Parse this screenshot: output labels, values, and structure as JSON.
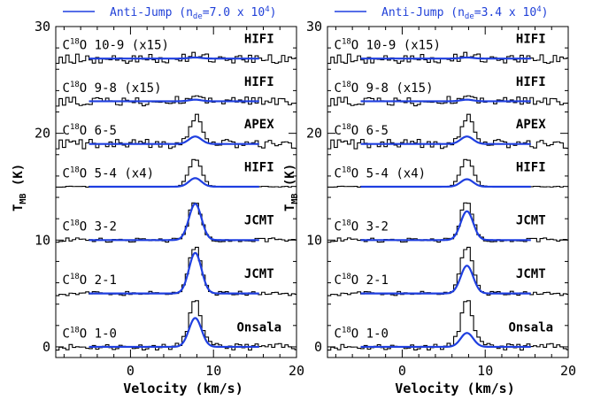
{
  "figure": {
    "ylabel": "T",
    "ylabel_sub": "MB",
    "ylabel_unit": " (K)",
    "xlabel": "Velocity (km/s)"
  },
  "colors": {
    "observed": "#000000",
    "model": "#1f3fe0",
    "legend_text": "#2040d8"
  },
  "chart_data": [
    {
      "type": "line",
      "legend": {
        "text": "Anti-Jump (n",
        "sub": "de",
        "eq": "=7.0 x 10",
        "sup": "4",
        "close": ")",
        "placement": "top"
      },
      "xlim": [
        -9,
        20
      ],
      "ylim": [
        -1,
        30
      ],
      "xticks": [
        0,
        10,
        20
      ],
      "yticks": [
        0,
        10,
        20,
        30
      ],
      "xlabel": "Velocity (km/s)",
      "ylabel": "T_MB (K)",
      "spectra": [
        {
          "line": "1-0",
          "mult": "",
          "telescope": "Onsala",
          "baseline": 0,
          "obs_peak": 4.2,
          "model_peak": 2.7,
          "noise": 0.3,
          "telescope_x": 15.5
        },
        {
          "line": "2-1",
          "mult": "",
          "telescope": "JCMT",
          "baseline": 5,
          "obs_peak": 4.4,
          "model_peak": 3.8,
          "noise": 0.2,
          "telescope_x": 15.5
        },
        {
          "line": "3-2",
          "mult": "",
          "telescope": "JCMT",
          "baseline": 10,
          "obs_peak": 3.6,
          "model_peak": 3.4,
          "noise": 0.2,
          "telescope_x": 15.5
        },
        {
          "line": "5-4",
          "mult": " (x4)",
          "telescope": "HIFI",
          "baseline": 15,
          "obs_peak": 2.6,
          "model_peak": 0.8,
          "noise": 0.04,
          "telescope_x": 15.5
        },
        {
          "line": "6-5",
          "mult": "",
          "telescope": "APEX",
          "baseline": 19,
          "obs_peak": 2.5,
          "model_peak": 0.7,
          "noise": 0.45,
          "telescope_x": 15.5
        },
        {
          "line": "9-8",
          "mult": " (x15)",
          "telescope": "HIFI",
          "baseline": 23,
          "obs_peak": 0.4,
          "model_peak": 0.15,
          "noise": 0.45,
          "telescope_x": 15.5
        },
        {
          "line": "10-9",
          "mult": " (x15)",
          "telescope": "HIFI",
          "baseline": 27,
          "obs_peak": 0.2,
          "model_peak": 0.1,
          "noise": 0.45,
          "telescope_x": 15.5
        }
      ]
    },
    {
      "type": "line",
      "legend": {
        "text": "Anti-Jump (n",
        "sub": "de",
        "eq": "=3.4 x 10",
        "sup": "4",
        "close": ")",
        "placement": "top"
      },
      "xlim": [
        -9,
        20
      ],
      "ylim": [
        -1,
        30
      ],
      "xticks": [
        0,
        10,
        20
      ],
      "yticks": [
        0,
        10,
        20,
        30
      ],
      "xlabel": "Velocity (km/s)",
      "ylabel": "T_MB (K)",
      "spectra": [
        {
          "line": "1-0",
          "mult": "",
          "telescope": "Onsala",
          "baseline": 0,
          "obs_peak": 4.2,
          "model_peak": 1.3,
          "noise": 0.3,
          "telescope_x": 15.5
        },
        {
          "line": "2-1",
          "mult": "",
          "telescope": "JCMT",
          "baseline": 5,
          "obs_peak": 4.4,
          "model_peak": 2.6,
          "noise": 0.2,
          "telescope_x": 15.5
        },
        {
          "line": "3-2",
          "mult": "",
          "telescope": "JCMT",
          "baseline": 10,
          "obs_peak": 3.6,
          "model_peak": 2.7,
          "noise": 0.2,
          "telescope_x": 15.5
        },
        {
          "line": "5-4",
          "mult": " (x4)",
          "telescope": "HIFI",
          "baseline": 15,
          "obs_peak": 2.6,
          "model_peak": 0.7,
          "noise": 0.04,
          "telescope_x": 15.5
        },
        {
          "line": "6-5",
          "mult": "",
          "telescope": "APEX",
          "baseline": 19,
          "obs_peak": 2.5,
          "model_peak": 0.7,
          "noise": 0.45,
          "telescope_x": 15.5
        },
        {
          "line": "9-8",
          "mult": " (x15)",
          "telescope": "HIFI",
          "baseline": 23,
          "obs_peak": 0.4,
          "model_peak": 0.15,
          "noise": 0.45,
          "telescope_x": 15.5
        },
        {
          "line": "10-9",
          "mult": " (x15)",
          "telescope": "HIFI",
          "baseline": 27,
          "obs_peak": 0.2,
          "model_peak": 0.1,
          "noise": 0.45,
          "telescope_x": 15.5
        }
      ]
    }
  ]
}
